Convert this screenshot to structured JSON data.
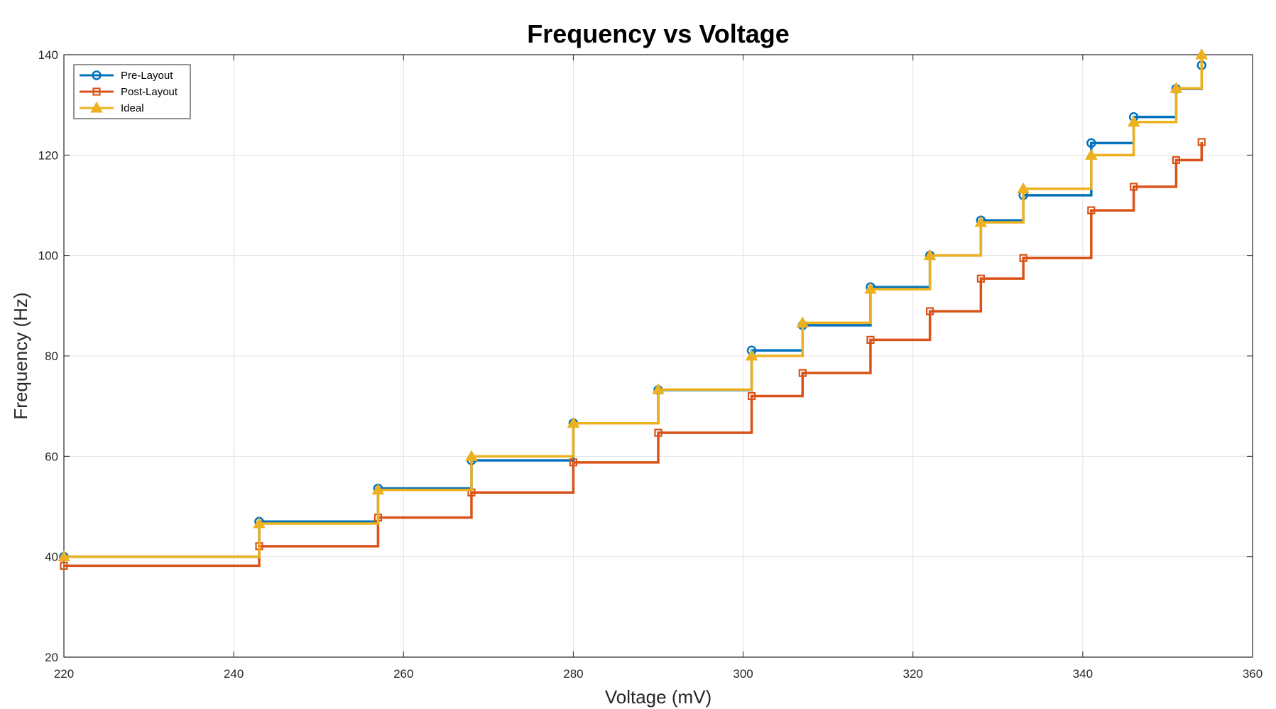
{
  "chart_data": {
    "type": "line",
    "step": "post",
    "title": "Frequency vs Voltage",
    "xlabel": "Voltage (mV)",
    "ylabel": "Frequency (Hz)",
    "xlim": [
      220,
      360
    ],
    "ylim": [
      20,
      140
    ],
    "xticks": [
      "220",
      "240",
      "260",
      "280",
      "300",
      "320",
      "340",
      "360"
    ],
    "yticks": [
      "20",
      "40",
      "60",
      "80",
      "100",
      "120",
      "140"
    ],
    "grid": true,
    "legend_position": "top-left",
    "x": [
      220,
      243,
      257,
      268,
      280,
      290,
      301,
      307,
      315,
      322,
      328,
      333,
      341,
      346,
      351,
      354
    ],
    "series": [
      {
        "name": "Pre-Layout",
        "color": "#0072BD",
        "marker": "circle",
        "values": [
          40,
          47,
          53.6,
          59.2,
          66.6,
          73.2,
          81.1,
          86.1,
          93.7,
          100,
          107,
          112,
          122.4,
          127.6,
          133.2,
          137.9
        ]
      },
      {
        "name": "Post-Layout",
        "color": "#D95319",
        "marker": "square",
        "values": [
          38.2,
          42.1,
          47.8,
          52.8,
          58.8,
          64.7,
          72,
          76.6,
          83.2,
          88.9,
          95.4,
          99.5,
          109,
          113.7,
          119,
          122.6
        ]
      },
      {
        "name": "Ideal",
        "color": "#EDB120",
        "marker": "triangle",
        "values": [
          40,
          46.6,
          53.3,
          60,
          66.6,
          73.3,
          80,
          86.6,
          93.3,
          100,
          106.6,
          113.3,
          120,
          126.6,
          133.3,
          140
        ]
      }
    ]
  }
}
